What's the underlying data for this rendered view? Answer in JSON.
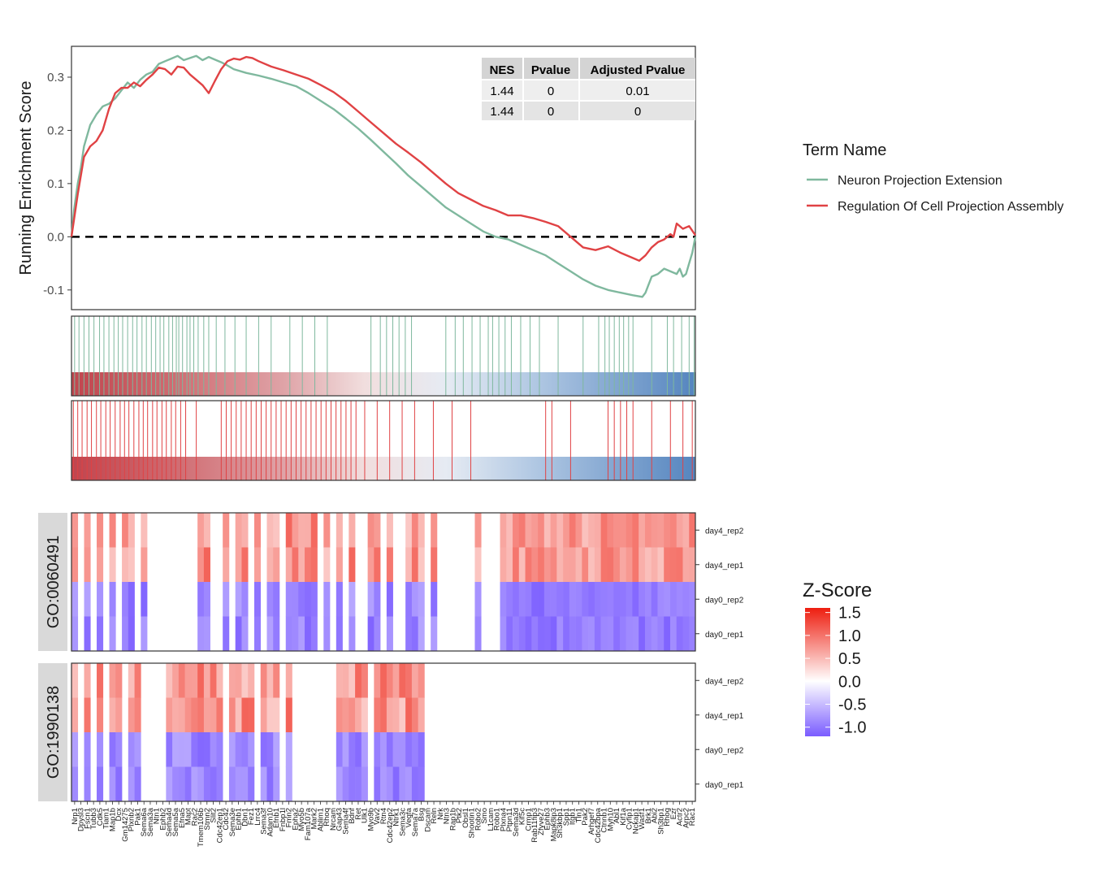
{
  "chart_data": {
    "type": "line",
    "es_panel": {
      "ylabel": "Running Enrichment Score",
      "yticks": [
        0.3,
        0.2,
        0.1,
        0.0,
        -0.1
      ],
      "ylim": [
        -0.137,
        0.358
      ],
      "xlim": [
        0,
        1
      ],
      "zero_line": "dashed",
      "series": [
        {
          "name": "Neuron Projection Extension",
          "color": "#7fb89e",
          "points": [
            [
              0,
              0.0
            ],
            [
              0.004,
              0.05
            ],
            [
              0.01,
              0.1
            ],
            [
              0.015,
              0.13
            ],
            [
              0.02,
              0.17
            ],
            [
              0.03,
              0.21
            ],
            [
              0.04,
              0.23
            ],
            [
              0.05,
              0.245
            ],
            [
              0.06,
              0.25
            ],
            [
              0.07,
              0.26
            ],
            [
              0.08,
              0.275
            ],
            [
              0.09,
              0.29
            ],
            [
              0.1,
              0.28
            ],
            [
              0.11,
              0.295
            ],
            [
              0.12,
              0.305
            ],
            [
              0.13,
              0.31
            ],
            [
              0.14,
              0.325
            ],
            [
              0.15,
              0.33
            ],
            [
              0.16,
              0.335
            ],
            [
              0.17,
              0.34
            ],
            [
              0.18,
              0.332
            ],
            [
              0.19,
              0.336
            ],
            [
              0.2,
              0.34
            ],
            [
              0.21,
              0.332
            ],
            [
              0.22,
              0.338
            ],
            [
              0.23,
              0.333
            ],
            [
              0.24,
              0.328
            ],
            [
              0.25,
              0.322
            ],
            [
              0.26,
              0.315
            ],
            [
              0.28,
              0.308
            ],
            [
              0.3,
              0.303
            ],
            [
              0.32,
              0.297
            ],
            [
              0.34,
              0.29
            ],
            [
              0.36,
              0.283
            ],
            [
              0.38,
              0.27
            ],
            [
              0.4,
              0.255
            ],
            [
              0.42,
              0.24
            ],
            [
              0.44,
              0.222
            ],
            [
              0.46,
              0.203
            ],
            [
              0.48,
              0.182
            ],
            [
              0.5,
              0.16
            ],
            [
              0.52,
              0.138
            ],
            [
              0.54,
              0.115
            ],
            [
              0.56,
              0.095
            ],
            [
              0.58,
              0.075
            ],
            [
              0.6,
              0.055
            ],
            [
              0.62,
              0.04
            ],
            [
              0.64,
              0.025
            ],
            [
              0.66,
              0.01
            ],
            [
              0.68,
              0.0
            ],
            [
              0.7,
              -0.005
            ],
            [
              0.72,
              -0.015
            ],
            [
              0.74,
              -0.025
            ],
            [
              0.76,
              -0.035
            ],
            [
              0.78,
              -0.05
            ],
            [
              0.8,
              -0.065
            ],
            [
              0.82,
              -0.08
            ],
            [
              0.84,
              -0.092
            ],
            [
              0.86,
              -0.1
            ],
            [
              0.88,
              -0.105
            ],
            [
              0.9,
              -0.11
            ],
            [
              0.915,
              -0.113
            ],
            [
              0.92,
              -0.105
            ],
            [
              0.925,
              -0.09
            ],
            [
              0.93,
              -0.075
            ],
            [
              0.94,
              -0.07
            ],
            [
              0.95,
              -0.06
            ],
            [
              0.96,
              -0.065
            ],
            [
              0.97,
              -0.07
            ],
            [
              0.975,
              -0.06
            ],
            [
              0.98,
              -0.075
            ],
            [
              0.985,
              -0.07
            ],
            [
              0.99,
              -0.05
            ],
            [
              0.995,
              -0.03
            ],
            [
              1,
              0.0
            ]
          ]
        },
        {
          "name": "Regulation Of Cell Projection Assembly",
          "color": "#e04244",
          "points": [
            [
              0,
              0.0
            ],
            [
              0.01,
              0.08
            ],
            [
              0.02,
              0.15
            ],
            [
              0.03,
              0.17
            ],
            [
              0.04,
              0.18
            ],
            [
              0.05,
              0.2
            ],
            [
              0.06,
              0.24
            ],
            [
              0.07,
              0.27
            ],
            [
              0.08,
              0.28
            ],
            [
              0.09,
              0.28
            ],
            [
              0.1,
              0.29
            ],
            [
              0.11,
              0.283
            ],
            [
              0.12,
              0.295
            ],
            [
              0.13,
              0.305
            ],
            [
              0.14,
              0.318
            ],
            [
              0.15,
              0.315
            ],
            [
              0.16,
              0.305
            ],
            [
              0.17,
              0.32
            ],
            [
              0.18,
              0.318
            ],
            [
              0.19,
              0.305
            ],
            [
              0.2,
              0.295
            ],
            [
              0.21,
              0.285
            ],
            [
              0.22,
              0.27
            ],
            [
              0.23,
              0.293
            ],
            [
              0.24,
              0.315
            ],
            [
              0.25,
              0.33
            ],
            [
              0.26,
              0.335
            ],
            [
              0.27,
              0.333
            ],
            [
              0.28,
              0.338
            ],
            [
              0.29,
              0.336
            ],
            [
              0.3,
              0.33
            ],
            [
              0.32,
              0.32
            ],
            [
              0.34,
              0.313
            ],
            [
              0.36,
              0.305
            ],
            [
              0.38,
              0.297
            ],
            [
              0.4,
              0.285
            ],
            [
              0.42,
              0.272
            ],
            [
              0.44,
              0.255
            ],
            [
              0.46,
              0.235
            ],
            [
              0.48,
              0.215
            ],
            [
              0.5,
              0.195
            ],
            [
              0.52,
              0.175
            ],
            [
              0.54,
              0.158
            ],
            [
              0.56,
              0.14
            ],
            [
              0.58,
              0.12
            ],
            [
              0.6,
              0.1
            ],
            [
              0.62,
              0.082
            ],
            [
              0.64,
              0.07
            ],
            [
              0.66,
              0.058
            ],
            [
              0.68,
              0.05
            ],
            [
              0.7,
              0.04
            ],
            [
              0.72,
              0.04
            ],
            [
              0.74,
              0.035
            ],
            [
              0.76,
              0.028
            ],
            [
              0.78,
              0.02
            ],
            [
              0.8,
              0.0
            ],
            [
              0.82,
              -0.02
            ],
            [
              0.84,
              -0.025
            ],
            [
              0.86,
              -0.018
            ],
            [
              0.88,
              -0.03
            ],
            [
              0.9,
              -0.04
            ],
            [
              0.91,
              -0.045
            ],
            [
              0.92,
              -0.035
            ],
            [
              0.93,
              -0.02
            ],
            [
              0.94,
              -0.01
            ],
            [
              0.95,
              -0.005
            ],
            [
              0.96,
              0.005
            ],
            [
              0.965,
              0.0
            ],
            [
              0.97,
              0.025
            ],
            [
              0.98,
              0.015
            ],
            [
              0.99,
              0.02
            ],
            [
              1,
              0.003
            ]
          ]
        }
      ]
    },
    "stats_table": {
      "headers": [
        "NES",
        "Pvalue",
        "Adjusted Pvalue"
      ],
      "rows": [
        [
          "1.44",
          "0",
          "0.01"
        ],
        [
          "1.44",
          "0",
          "0"
        ]
      ]
    },
    "legend_top": {
      "title": "Term Name",
      "items": [
        {
          "label": "Neuron Projection Extension",
          "color": "#7fb89e"
        },
        {
          "label": "Regulation Of Cell Projection Assembly",
          "color": "#e04244"
        }
      ]
    },
    "rank_strips": [
      {
        "color": "#7fb89e",
        "hits": [
          0.005,
          0.012,
          0.02,
          0.028,
          0.036,
          0.045,
          0.052,
          0.06,
          0.068,
          0.075,
          0.082,
          0.09,
          0.098,
          0.105,
          0.113,
          0.12,
          0.128,
          0.135,
          0.142,
          0.148,
          0.156,
          0.162,
          0.168,
          0.172,
          0.178,
          0.185,
          0.19,
          0.196,
          0.203,
          0.212,
          0.22,
          0.232,
          0.246,
          0.262,
          0.28,
          0.3,
          0.32,
          0.35,
          0.37,
          0.39,
          0.41,
          0.48,
          0.495,
          0.505,
          0.515,
          0.525,
          0.535,
          0.545,
          0.6,
          0.615,
          0.628,
          0.642,
          0.655,
          0.668,
          0.675,
          0.685,
          0.695,
          0.705,
          0.72,
          0.735,
          0.75,
          0.78,
          0.82,
          0.845,
          0.855,
          0.862,
          0.87,
          0.878,
          0.885,
          0.893,
          0.9,
          0.93,
          0.955,
          0.965,
          0.978,
          0.99,
          0.998
        ]
      },
      {
        "color": "#e04244",
        "hits": [
          0.003,
          0.01,
          0.017,
          0.025,
          0.032,
          0.04,
          0.047,
          0.055,
          0.062,
          0.07,
          0.078,
          0.085,
          0.092,
          0.1,
          0.108,
          0.115,
          0.122,
          0.13,
          0.137,
          0.145,
          0.152,
          0.16,
          0.167,
          0.175,
          0.183,
          0.2,
          0.24,
          0.248,
          0.256,
          0.264,
          0.272,
          0.28,
          0.288,
          0.296,
          0.304,
          0.312,
          0.32,
          0.328,
          0.336,
          0.344,
          0.352,
          0.36,
          0.368,
          0.376,
          0.384,
          0.392,
          0.4,
          0.408,
          0.416,
          0.424,
          0.432,
          0.44,
          0.448,
          0.456,
          0.47,
          0.49,
          0.51,
          0.53,
          0.55,
          0.58,
          0.61,
          0.64,
          0.76,
          0.77,
          0.8,
          0.86,
          0.87,
          0.88,
          0.89,
          0.9,
          0.93,
          0.96,
          0.98,
          0.995
        ]
      }
    ],
    "heatmap": {
      "type": "heatmap",
      "rows": [
        "day4_rep2",
        "day4_rep1",
        "day0_rep2",
        "day0_rep1"
      ],
      "groups": [
        "GO:0060491",
        "GO:1990138"
      ],
      "genes": [
        "Nrp1",
        "Dpysl3",
        "Fscn1",
        "Tubb3",
        "Cdk5",
        "Tiam1",
        "Map1b",
        "Dcx",
        "Gm14275",
        "Plxnb2",
        "Pak1",
        "Sema6a",
        "Sema3a",
        "Ntn1",
        "Ephb2",
        "Sema4d",
        "Sema5a",
        "Efna5",
        "Mapt",
        "Rac2",
        "Tmem106b",
        "Stmn2",
        "Slit2",
        "Cdc42ep1",
        "Cdc42",
        "Sema3e",
        "Ephb1",
        "Dbn1",
        "Fez1",
        "Lrrc4",
        "Sema3f",
        "Adam10",
        "Efnb1",
        "Fnbp1l",
        "Fmn2",
        "Epha2",
        "Myo5b",
        "Fam107a",
        "Mark2",
        "Ablim1",
        "Rhoq",
        "Nrcam",
        "Gap43",
        "Sema4f",
        "Bdnf",
        "Ret",
        "Ulk1",
        "Myo9b",
        "Vav2",
        "Rtn4",
        "Cdc42ep2",
        "Ntrk1",
        "Sema3c",
        "Vegfa",
        "Sema7a",
        "Bsg",
        "Dscam",
        "Reln",
        "Nrk",
        "Ntn3",
        "Rap1b",
        "Ptk2",
        "Obsl1",
        "Shootin1",
        "Robo2",
        "Smo",
        "L1cam",
        "Robo1",
        "Plxna4",
        "Ptpn11",
        "Sema3d",
        "Kif5c",
        "Crmp1",
        "Rab11fip3",
        "Zfyve27",
        "Ephb3",
        "Mapk8ip3",
        "Sh3kbp1",
        "Spp1",
        "Itgb1",
        "Tln1",
        "Pak2",
        "Arhgef7",
        "Cdc42bpa",
        "Ctnnb1",
        "Myh10",
        "Abl1",
        "Kif1a",
        "Cyfip1",
        "Nckap1",
        "Wasf1",
        "Brk1",
        "Abi2",
        "Sh3bp1",
        "Rhog",
        "Ezr",
        "Actr2",
        "Arpc2",
        "Rac1"
      ],
      "gene_labels_printed": [
        "Nrp1",
        "Dpysl3",
        "Fscn1",
        "Tubb3",
        "Cdk5",
        "Tiam1",
        "Map1b",
        "Dcx",
        "Gm14275",
        "Plxnb2",
        "Pak1",
        "Sema6a",
        "Sema3a",
        "Ntn1",
        "Ephb2",
        "Sema4d",
        "Sema5a",
        "Efna5",
        "Mapt",
        "Rac2",
        "Tmem106b",
        "Stmn2",
        "Slit2",
        "Cdc42ep1",
        "Cdc42",
        "Sema3e",
        "Ephb1",
        "Dbn1",
        "Fez1",
        "Lrrc4",
        "Sema3f",
        "Adam10",
        "Efnb1",
        "Fnbp1l",
        "Fmn2",
        "Epha2",
        "Myo5b",
        "Fam107a",
        "Mark2",
        "Ablim1",
        "Rhoq",
        "Nrcam",
        "Gap43",
        "Sema4f",
        "Bdnf",
        "Ret",
        "Ulk1",
        "Myo9b",
        "Vav2",
        "Rtn4",
        "Cdc42ep2",
        "Ntrk1",
        "Sema3c",
        "Vegfa",
        "Sema7a",
        "Bsg",
        "Dscam",
        "Reln",
        "Nrk",
        "Ntn3",
        "Rap1b",
        "Ptk2",
        "Obsl1",
        "Shootin1",
        "Robo2",
        "Smo",
        "L1cam",
        "Robo1",
        "Plxna4",
        "Ptpn11",
        "Sema3d",
        "Kif5c",
        "Crmp1",
        "Rab11fip3",
        "Zfyve27",
        "Ephb3",
        "Mapk8ip3",
        "Sh3kbp1",
        "Spp1",
        "Itgb1",
        "Tln1",
        "Pak2",
        "Arhgef7",
        "Cdc42bpa",
        "Ctnnb1",
        "Myh10",
        "Abl1",
        "Kif1a",
        "Cyfip1",
        "Nckap1",
        "Wasf1",
        "Brk1",
        "Abi2",
        "Sh3bp1",
        "Rhog",
        "Ezr",
        "Actr2",
        "Arpc2",
        "Rac1"
      ]
    },
    "legend_z": {
      "title": "Z-Score",
      "ticks": [
        "1.5",
        "1.0",
        "0.5",
        "0.0",
        "-0.5",
        "-1.0"
      ],
      "range": [
        -1.2,
        1.6
      ],
      "colors": {
        "low": "#7a5cff",
        "mid": "#ffffff",
        "high": "#ee1e10"
      }
    }
  }
}
